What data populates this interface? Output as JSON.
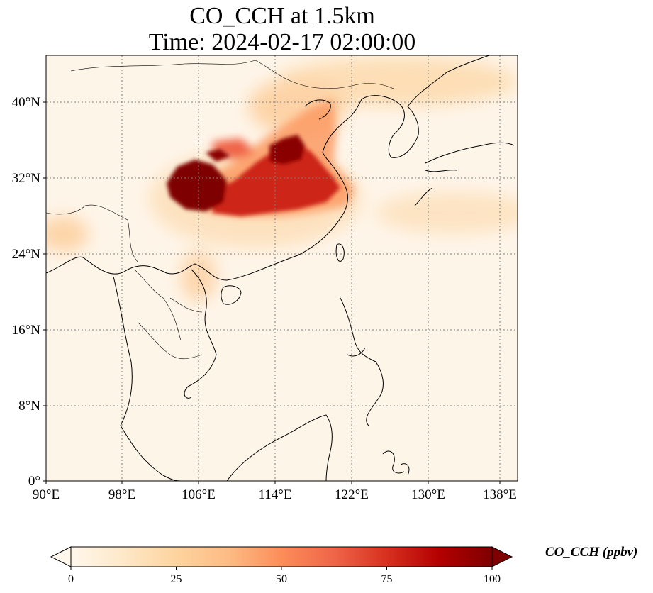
{
  "title": {
    "line1": "CO_CCH at 1.5km",
    "line2": "Time: 2024-02-17 02:00:00"
  },
  "map": {
    "projection": "PlateCarree",
    "lon_range": [
      90,
      139
    ],
    "lat_range": [
      0,
      45
    ],
    "gridlines": "dotted",
    "lon_ticks": [
      "90°E",
      "98°E",
      "106°E",
      "114°E",
      "122°E",
      "130°E",
      "138°E"
    ],
    "lat_ticks": [
      "0°",
      "8°N",
      "16°N",
      "24°N",
      "32°N",
      "40°N"
    ],
    "colormap": "OrRd",
    "colors": [
      "#fff7ec",
      "#fee8c8",
      "#fdd49e",
      "#fdbb84",
      "#fc8d59",
      "#ef6548",
      "#d7301f",
      "#b30000",
      "#7f0000"
    ]
  },
  "colorbar": {
    "label": "CO_CCH (ppbv)",
    "min": 0,
    "max": 100,
    "extend": "both",
    "ticks": [
      "0",
      "25",
      "50",
      "75",
      "100"
    ]
  }
}
